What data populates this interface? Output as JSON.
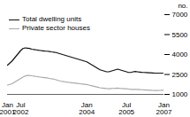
{
  "chart_data": {
    "type": "line",
    "ylabel": "no.",
    "ylim": [
      1000,
      7000
    ],
    "yticks": [
      1000,
      2500,
      4000,
      5500,
      7000
    ],
    "legend": "upper left",
    "categories": [
      "Jan\n2001",
      null,
      null,
      null,
      null,
      null,
      "Jul\n2002",
      null,
      null,
      null,
      null,
      null,
      null,
      null,
      null,
      null,
      null,
      null,
      null,
      null,
      null,
      null,
      null,
      null,
      null,
      null,
      null,
      null,
      null,
      null,
      null,
      null,
      null,
      null,
      null,
      null,
      "Jan\n2004",
      null,
      null,
      null,
      null,
      null,
      null,
      null,
      null,
      null,
      null,
      null,
      null,
      null,
      null,
      null,
      null,
      null,
      "Jul\n2005",
      null,
      null,
      null,
      null,
      null,
      null,
      null,
      null,
      null,
      null,
      null,
      null,
      null,
      null,
      null,
      null,
      "Jan\n2007"
    ],
    "series": [
      {
        "name": "Total dwelling units",
        "color": "#111111",
        "values": [
          3200,
          3350,
          3500,
          3700,
          3900,
          4100,
          4300,
          4450,
          4500,
          4480,
          4460,
          4400,
          4380,
          4350,
          4320,
          4300,
          4280,
          4260,
          4250,
          4230,
          4200,
          4180,
          4150,
          4100,
          4050,
          4000,
          3950,
          3900,
          3850,
          3800,
          3750,
          3700,
          3650,
          3600,
          3550,
          3500,
          3450,
          3350,
          3250,
          3150,
          3050,
          2950,
          2850,
          2800,
          2750,
          2700,
          2700,
          2750,
          2800,
          2850,
          2900,
          2850,
          2800,
          2750,
          2700,
          2650,
          2650,
          2700,
          2720,
          2700,
          2680,
          2660,
          2650,
          2640,
          2630,
          2620,
          2610,
          2600,
          2600,
          2600,
          2600,
          2580
        ]
      },
      {
        "name": "Private sector houses",
        "color": "#aaaaaa",
        "values": [
          1700,
          1750,
          1800,
          1900,
          2000,
          2100,
          2200,
          2300,
          2380,
          2420,
          2430,
          2400,
          2380,
          2350,
          2320,
          2300,
          2280,
          2260,
          2240,
          2200,
          2180,
          2150,
          2100,
          2050,
          2000,
          1980,
          1950,
          1920,
          1900,
          1880,
          1860,
          1840,
          1820,
          1800,
          1780,
          1760,
          1740,
          1700,
          1660,
          1620,
          1580,
          1540,
          1500,
          1480,
          1460,
          1440,
          1430,
          1440,
          1450,
          1460,
          1470,
          1450,
          1440,
          1430,
          1420,
          1400,
          1380,
          1380,
          1380,
          1370,
          1360,
          1350,
          1340,
          1330,
          1320,
          1310,
          1300,
          1290,
          1290,
          1300,
          1310,
          1300
        ]
      }
    ]
  }
}
